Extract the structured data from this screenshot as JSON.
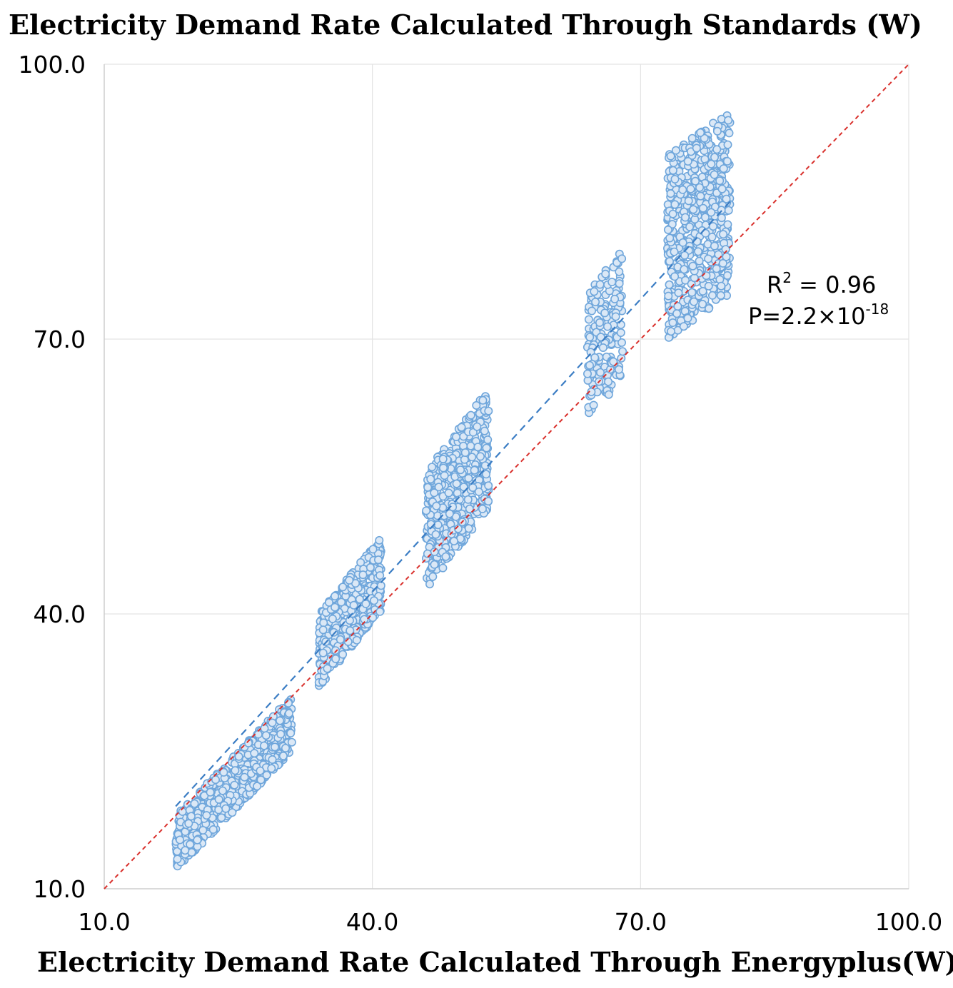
{
  "chart_data": {
    "type": "scatter",
    "ylabel": "Electricity Demand Rate Calculated Through Standards (W)",
    "xlabel": "Electricity Demand Rate Calculated Through Energyplus(W)",
    "xlim": [
      10,
      100
    ],
    "ylim": [
      10,
      100
    ],
    "xticks": [
      "10.0",
      "40.0",
      "70.0",
      "100.0"
    ],
    "yticks": [
      "10.0",
      "40.0",
      "70.0",
      "100.0"
    ],
    "grid": true,
    "annotation": {
      "r2_label": "R",
      "r2_sup": "2",
      "r2_value": " = 0.96",
      "p_label": "P=2.2×10",
      "p_sup": "-18"
    },
    "colors": {
      "points_fill": "#dbe8f6",
      "points_stroke": "#6fa6db",
      "fit_line": "#3b7dc4",
      "identity_line": "#d9302c",
      "grid": "#e3e3e3"
    },
    "fit_line": {
      "x": [
        18,
        80
      ],
      "y": [
        19,
        85
      ]
    },
    "identity_line": {
      "x": [
        10,
        100
      ],
      "y": [
        10,
        100
      ]
    },
    "clusters": [
      {
        "name": "",
        "x_range": [
          18,
          31
        ],
        "y_center_at_x_min": 15,
        "slope": 1.0,
        "y_spread": 3.0,
        "count": 700
      },
      {
        "name": "",
        "x_range": [
          34,
          41
        ],
        "y_center_at_x_min": 36,
        "slope": 1.2,
        "y_spread": 4.0,
        "count": 520
      },
      {
        "name": "",
        "x_range": [
          46,
          53
        ],
        "y_center_at_x_min": 49,
        "slope": 1.3,
        "y_spread": 6.5,
        "count": 520
      },
      {
        "name": "",
        "x_range": [
          64,
          68
        ],
        "y_center_at_x_min": 68,
        "slope": 1.2,
        "y_spread": 7.0,
        "count": 180
      },
      {
        "name": "",
        "x_range": [
          73,
          80
        ],
        "y_center_at_x_min": 80,
        "slope": 0.7,
        "y_spread": 10.0,
        "count": 620
      }
    ]
  }
}
